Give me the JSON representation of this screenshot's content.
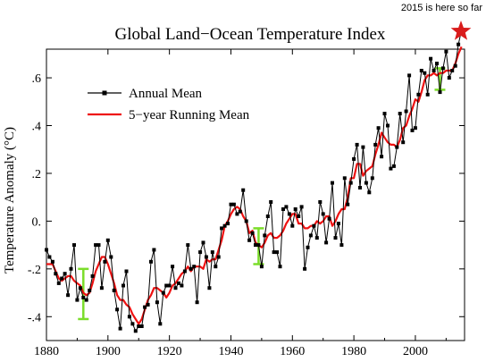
{
  "chart_data": {
    "type": "line",
    "title": "Global Land−Ocean Temperature Index",
    "xlabel": "",
    "ylabel": "Temperature Anomaly (°C)",
    "xlim": [
      1880,
      2016
    ],
    "ylim": [
      -0.5,
      0.72
    ],
    "x_ticks": [
      1880,
      1900,
      1920,
      1940,
      1960,
      1980,
      2000
    ],
    "x_tick_labels": [
      "1880",
      "1900",
      "1920",
      "1940",
      "1960",
      "1980",
      "2000"
    ],
    "y_ticks": [
      -0.4,
      -0.2,
      0.0,
      0.2,
      0.4,
      0.6
    ],
    "y_tick_labels": [
      "-.4",
      "-.2",
      "0.",
      ".2",
      ".4",
      ".6"
    ],
    "grid": false,
    "legend_position": "top-left",
    "x": [
      1880,
      1881,
      1882,
      1883,
      1884,
      1885,
      1886,
      1887,
      1888,
      1889,
      1890,
      1891,
      1892,
      1893,
      1894,
      1895,
      1896,
      1897,
      1898,
      1899,
      1900,
      1901,
      1902,
      1903,
      1904,
      1905,
      1906,
      1907,
      1908,
      1909,
      1910,
      1911,
      1912,
      1913,
      1914,
      1915,
      1916,
      1917,
      1918,
      1919,
      1920,
      1921,
      1922,
      1923,
      1924,
      1925,
      1926,
      1927,
      1928,
      1929,
      1930,
      1931,
      1932,
      1933,
      1934,
      1935,
      1936,
      1937,
      1938,
      1939,
      1940,
      1941,
      1942,
      1943,
      1944,
      1945,
      1946,
      1947,
      1948,
      1949,
      1950,
      1951,
      1952,
      1953,
      1954,
      1955,
      1956,
      1957,
      1958,
      1959,
      1960,
      1961,
      1962,
      1963,
      1964,
      1965,
      1966,
      1967,
      1968,
      1969,
      1970,
      1971,
      1972,
      1973,
      1974,
      1975,
      1976,
      1977,
      1978,
      1979,
      1980,
      1981,
      1982,
      1983,
      1984,
      1985,
      1986,
      1987,
      1988,
      1989,
      1990,
      1991,
      1992,
      1993,
      1994,
      1995,
      1996,
      1997,
      1998,
      1999,
      2000,
      2001,
      2002,
      2003,
      2004,
      2005,
      2006,
      2007,
      2008,
      2009,
      2010,
      2011,
      2012,
      2013,
      2014,
      2015
    ],
    "series": [
      {
        "name": "Annual Mean",
        "color": "#000000",
        "marker": "square",
        "values": [
          -0.12,
          -0.15,
          -0.17,
          -0.22,
          -0.26,
          -0.24,
          -0.22,
          -0.31,
          -0.2,
          -0.1,
          -0.33,
          -0.28,
          -0.32,
          -0.33,
          -0.29,
          -0.23,
          -0.1,
          -0.1,
          -0.28,
          -0.17,
          -0.08,
          -0.15,
          -0.29,
          -0.37,
          -0.45,
          -0.27,
          -0.21,
          -0.4,
          -0.43,
          -0.46,
          -0.44,
          -0.44,
          -0.36,
          -0.35,
          -0.17,
          -0.12,
          -0.34,
          -0.43,
          -0.3,
          -0.27,
          -0.27,
          -0.19,
          -0.28,
          -0.26,
          -0.27,
          -0.21,
          -0.1,
          -0.2,
          -0.19,
          -0.34,
          -0.13,
          -0.09,
          -0.15,
          -0.28,
          -0.13,
          -0.19,
          -0.15,
          -0.03,
          -0.02,
          -0.01,
          0.07,
          0.07,
          0.03,
          0.04,
          0.13,
          0.0,
          -0.08,
          -0.05,
          -0.1,
          -0.1,
          -0.19,
          -0.06,
          0.02,
          0.08,
          -0.13,
          -0.13,
          -0.19,
          0.05,
          0.06,
          0.03,
          -0.02,
          0.05,
          0.02,
          0.06,
          -0.2,
          -0.11,
          -0.06,
          -0.02,
          -0.07,
          0.08,
          0.03,
          -0.09,
          0.01,
          0.16,
          -0.07,
          -0.01,
          -0.1,
          0.18,
          0.07,
          0.16,
          0.26,
          0.32,
          0.14,
          0.31,
          0.16,
          0.12,
          0.18,
          0.32,
          0.39,
          0.27,
          0.45,
          0.4,
          0.22,
          0.23,
          0.31,
          0.45,
          0.33,
          0.46,
          0.61,
          0.38,
          0.39,
          0.53,
          0.63,
          0.62,
          0.53,
          0.68,
          0.63,
          0.66,
          0.54,
          0.64,
          0.71,
          0.6,
          0.63,
          0.65,
          0.74,
          0.8
        ]
      },
      {
        "name": "5−year Running Mean",
        "color": "#ee1111",
        "values": [
          -0.18,
          -0.18,
          -0.18,
          -0.21,
          -0.24,
          -0.25,
          -0.24,
          -0.23,
          -0.23,
          -0.25,
          -0.26,
          -0.27,
          -0.3,
          -0.31,
          -0.3,
          -0.26,
          -0.21,
          -0.18,
          -0.15,
          -0.15,
          -0.18,
          -0.22,
          -0.26,
          -0.31,
          -0.33,
          -0.33,
          -0.35,
          -0.36,
          -0.39,
          -0.41,
          -0.43,
          -0.41,
          -0.37,
          -0.33,
          -0.31,
          -0.28,
          -0.28,
          -0.29,
          -0.3,
          -0.32,
          -0.3,
          -0.27,
          -0.26,
          -0.24,
          -0.22,
          -0.21,
          -0.19,
          -0.21,
          -0.19,
          -0.19,
          -0.19,
          -0.2,
          -0.16,
          -0.17,
          -0.16,
          -0.16,
          -0.12,
          -0.08,
          -0.02,
          0.0,
          0.03,
          0.05,
          0.06,
          0.05,
          0.02,
          0.0,
          -0.05,
          -0.04,
          -0.09,
          -0.1,
          -0.11,
          -0.09,
          -0.06,
          -0.05,
          -0.07,
          -0.07,
          -0.06,
          -0.04,
          -0.01,
          0.01,
          0.03,
          0.03,
          -0.01,
          -0.01,
          -0.03,
          -0.03,
          -0.02,
          -0.02,
          0.0,
          -0.01,
          0.0,
          0.02,
          0.02,
          -0.02,
          0.0,
          0.03,
          0.05,
          0.05,
          0.1,
          0.18,
          0.18,
          0.24,
          0.24,
          0.19,
          0.21,
          0.22,
          0.23,
          0.28,
          0.32,
          0.37,
          0.35,
          0.33,
          0.32,
          0.32,
          0.31,
          0.34,
          0.39,
          0.4,
          0.44,
          0.47,
          0.51,
          0.5,
          0.54,
          0.59,
          0.61,
          0.61,
          0.62,
          0.61,
          0.62,
          0.62,
          0.63,
          0.63,
          0.63,
          0.66,
          0.7,
          0.73
        ]
      }
    ],
    "error_bars": [
      {
        "x": 1892,
        "low": -0.41,
        "high": -0.2,
        "color": "#7bdd2a"
      },
      {
        "x": 1949,
        "low": -0.18,
        "high": -0.03,
        "color": "#7bdd2a"
      },
      {
        "x": 2008,
        "low": 0.55,
        "high": 0.64,
        "color": "#7bdd2a"
      }
    ],
    "annotation": {
      "text": "2015 is here so far",
      "marker": "star",
      "color": "#d91c1c"
    }
  }
}
